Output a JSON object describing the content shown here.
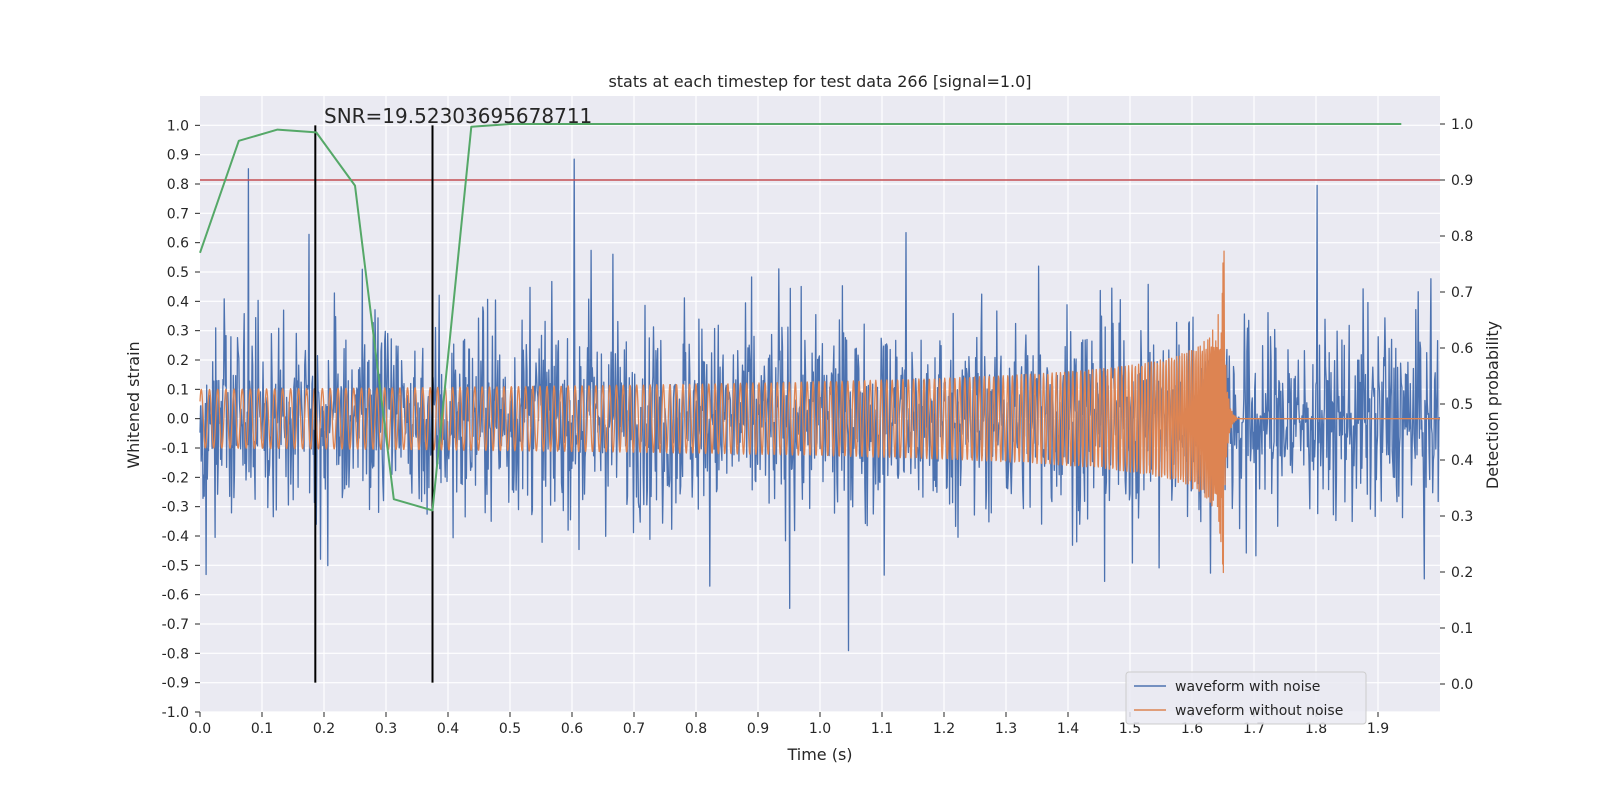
{
  "chart_data": {
    "type": "line",
    "title": "stats at each timestep for test data 266 [signal=1.0]",
    "xlabel": "Time (s)",
    "ylabel": "Whitened strain",
    "y2label": "Detection probability",
    "xlim": [
      0.0,
      2.0
    ],
    "ylim": [
      -1.0,
      1.1
    ],
    "y2lim": [
      -0.05,
      1.05
    ],
    "x_ticks": [
      "0.0",
      "0.1",
      "0.2",
      "0.3",
      "0.4",
      "0.5",
      "0.6",
      "0.7",
      "0.8",
      "0.9",
      "1.0",
      "1.1",
      "1.2",
      "1.3",
      "1.4",
      "1.5",
      "1.6",
      "1.7",
      "1.8",
      "1.9"
    ],
    "y_ticks": [
      "-1.0",
      "-0.9",
      "-0.8",
      "-0.7",
      "-0.6",
      "-0.5",
      "-0.4",
      "-0.3",
      "-0.2",
      "-0.1",
      "0.0",
      "0.1",
      "0.2",
      "0.3",
      "0.4",
      "0.5",
      "0.6",
      "0.7",
      "0.8",
      "0.9",
      "1.0"
    ],
    "y2_ticks": [
      "0.0",
      "0.1",
      "0.2",
      "0.3",
      "0.4",
      "0.5",
      "0.6",
      "0.7",
      "0.8",
      "0.9",
      "1.0"
    ],
    "annotation": "SNR=19.52303695678711",
    "grid": true,
    "legend_position": "bottom-right",
    "threshold": {
      "axis": "right",
      "value": 0.9,
      "color": "#c44e52"
    },
    "vlines": [
      {
        "x": 0.186,
        "ymin": -0.9,
        "ymax": 1.0
      },
      {
        "x": 0.375,
        "ymin": -0.9,
        "ymax": 1.0
      }
    ],
    "series": [
      {
        "name": "waveform with noise",
        "color": "#4c72b0",
        "style": "noisy strain trace, amplitude about 0.35 with spikes to about +/-0.95"
      },
      {
        "name": "waveform without noise",
        "color": "#dd8452",
        "style": "chirp, amplitude about 0.1 growing to about 0.5 near merger at 1.65 s, flat 0.0 afterwards"
      },
      {
        "name": "detection probability",
        "axis": "right",
        "color": "#55a868",
        "x": [
          0.0,
          0.0625,
          0.125,
          0.1875,
          0.25,
          0.3125,
          0.375,
          0.4375,
          0.5,
          0.5625,
          0.625,
          0.6875,
          0.75,
          0.8125,
          0.875,
          0.9375,
          1.0,
          1.0625,
          1.125,
          1.1875,
          1.25,
          1.3125,
          1.375,
          1.4375,
          1.5,
          1.5625,
          1.625,
          1.6875,
          1.75,
          1.8125,
          1.875,
          1.9375
        ],
        "values": [
          0.77,
          0.97,
          0.99,
          0.985,
          0.89,
          0.33,
          0.31,
          0.995,
          1.0,
          1.0,
          1.0,
          1.0,
          1.0,
          1.0,
          1.0,
          1.0,
          1.0,
          1.0,
          1.0,
          1.0,
          1.0,
          1.0,
          1.0,
          1.0,
          1.0,
          1.0,
          1.0,
          1.0,
          1.0,
          1.0,
          1.0,
          1.0
        ]
      }
    ]
  }
}
